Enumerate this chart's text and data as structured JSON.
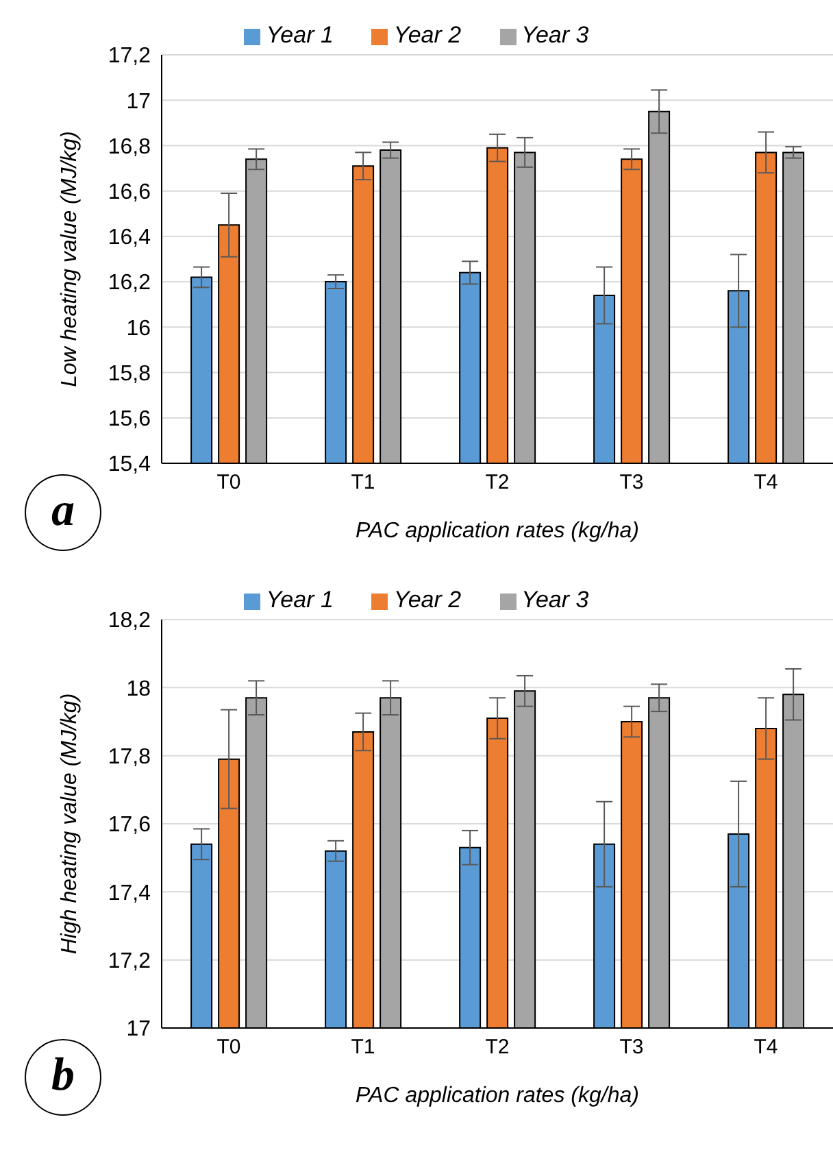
{
  "chart_data": [
    {
      "type": "bar",
      "xlabel": "PAC application rates (kg/ha)",
      "ylabel": "Low heating value (MJ/kg)",
      "annotations": [
        "a"
      ],
      "categories": [
        "T0",
        "T1",
        "T2",
        "T3",
        "T4"
      ],
      "series": [
        {
          "name": "Year 1",
          "color": "#5b9bd5",
          "values": [
            16.22,
            16.2,
            16.24,
            16.14,
            16.16
          ],
          "errors": [
            0.045,
            0.03,
            0.05,
            0.125,
            0.16
          ]
        },
        {
          "name": "Year 2",
          "color": "#ed7d31",
          "values": [
            16.45,
            16.71,
            16.79,
            16.74,
            16.77
          ],
          "errors": [
            0.14,
            0.06,
            0.06,
            0.045,
            0.09
          ]
        },
        {
          "name": "Year 3",
          "color": "#a5a5a5",
          "values": [
            16.74,
            16.78,
            16.77,
            16.95,
            16.77
          ],
          "errors": [
            0.045,
            0.035,
            0.065,
            0.095,
            0.025
          ]
        }
      ],
      "ylim": [
        15.4,
        17.2
      ],
      "yticks": [
        {
          "value": 15.4,
          "label": "15,4"
        },
        {
          "value": 15.6,
          "label": "15,6"
        },
        {
          "value": 15.8,
          "label": "15,8"
        },
        16,
        {
          "value": 16.2,
          "label": "16,2"
        },
        {
          "value": 16.4,
          "label": "16,4"
        },
        {
          "value": 16.6,
          "label": "16,6"
        },
        {
          "value": 16.8,
          "label": "16,8"
        },
        17,
        {
          "value": 17.2,
          "label": "17,2"
        }
      ],
      "grid": "y",
      "legend": "top"
    },
    {
      "type": "bar",
      "xlabel": "PAC application rates (kg/ha)",
      "ylabel": "High heating value (MJ/kg)",
      "annotations": [
        "b"
      ],
      "categories": [
        "T0",
        "T1",
        "T2",
        "T3",
        "T4"
      ],
      "series": [
        {
          "name": "Year 1",
          "color": "#5b9bd5",
          "values": [
            17.54,
            17.52,
            17.53,
            17.54,
            17.57
          ],
          "errors": [
            0.045,
            0.03,
            0.05,
            0.125,
            0.155
          ]
        },
        {
          "name": "Year 2",
          "color": "#ed7d31",
          "values": [
            17.79,
            17.87,
            17.91,
            17.9,
            17.88
          ],
          "errors": [
            0.145,
            0.055,
            0.06,
            0.045,
            0.09
          ]
        },
        {
          "name": "Year 3",
          "color": "#a5a5a5",
          "values": [
            17.97,
            17.97,
            17.99,
            17.97,
            17.98
          ],
          "errors": [
            0.05,
            0.05,
            0.045,
            0.04,
            0.075
          ]
        }
      ],
      "ylim": [
        17,
        18.2
      ],
      "yticks": [
        17,
        {
          "value": 17.2,
          "label": "17,2"
        },
        {
          "value": 17.4,
          "label": "17,4"
        },
        {
          "value": 17.6,
          "label": "17,6"
        },
        {
          "value": 17.8,
          "label": "17,8"
        },
        18,
        {
          "value": 18.2,
          "label": "18,2"
        }
      ],
      "grid": "y",
      "legend": "top"
    }
  ]
}
